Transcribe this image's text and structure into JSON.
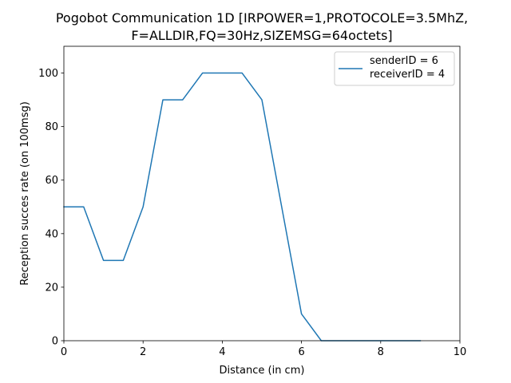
{
  "chart_data": {
    "type": "line",
    "title_lines": [
      "Pogobot Communication 1D [IRPOWER=1,PROTOCOLE=3.5MhZ,",
      "F=ALLDIR,FQ=30Hz,SIZEMSG=64octets]"
    ],
    "xlabel": "Distance (in cm)",
    "ylabel": "Reception succes rate (on 100msg)",
    "xlim": [
      0,
      10
    ],
    "ylim": [
      0,
      110
    ],
    "xticks": [
      0,
      2,
      4,
      6,
      8,
      10
    ],
    "yticks": [
      0,
      20,
      40,
      60,
      80,
      100
    ],
    "grid": false,
    "legend_position": "top-right",
    "series": [
      {
        "name_lines": [
          "senderID = 6",
          "receiverID = 4"
        ],
        "color": "#1f77b4",
        "x": [
          0,
          0.5,
          1,
          1.5,
          2,
          2.5,
          3,
          3.5,
          4,
          4.5,
          5,
          5.5,
          6,
          6.5,
          7,
          7.5,
          8,
          8.5,
          9
        ],
        "y": [
          50,
          50,
          30,
          30,
          50,
          90,
          90,
          100,
          100,
          100,
          90,
          50,
          10,
          0,
          0,
          0,
          0,
          0,
          0
        ]
      }
    ]
  }
}
